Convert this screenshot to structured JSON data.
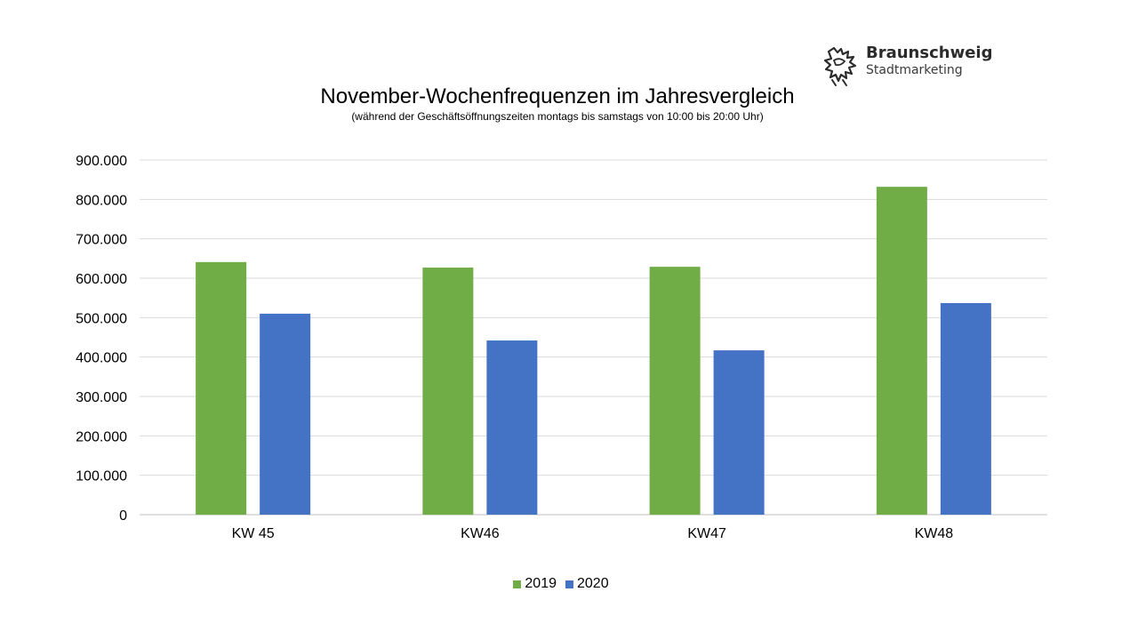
{
  "logo": {
    "name": "Braunschweig",
    "subtitle": "Stadtmarketing"
  },
  "chart_data": {
    "type": "bar",
    "title": "November-Wochenfrequenzen im Jahresvergleich",
    "subtitle": "(während  der Geschäftsöffnungszeiten  montags bis samstags von  10:00 bis 20:00 Uhr)",
    "categories": [
      "KW 45",
      "KW46",
      "KW47",
      "KW48"
    ],
    "series": [
      {
        "name": "2019",
        "color": "#70ad47",
        "values": [
          641000,
          627000,
          629000,
          832000
        ]
      },
      {
        "name": "2020",
        "color": "#4472c4",
        "values": [
          510000,
          442000,
          417000,
          537000
        ]
      }
    ],
    "ylim": [
      0,
      900000
    ],
    "yticks": [
      "0",
      "100.000",
      "200.000",
      "300.000",
      "400.000",
      "500.000",
      "600.000",
      "700.000",
      "800.000",
      "900.000"
    ],
    "grid": true,
    "legend": "bottom"
  }
}
